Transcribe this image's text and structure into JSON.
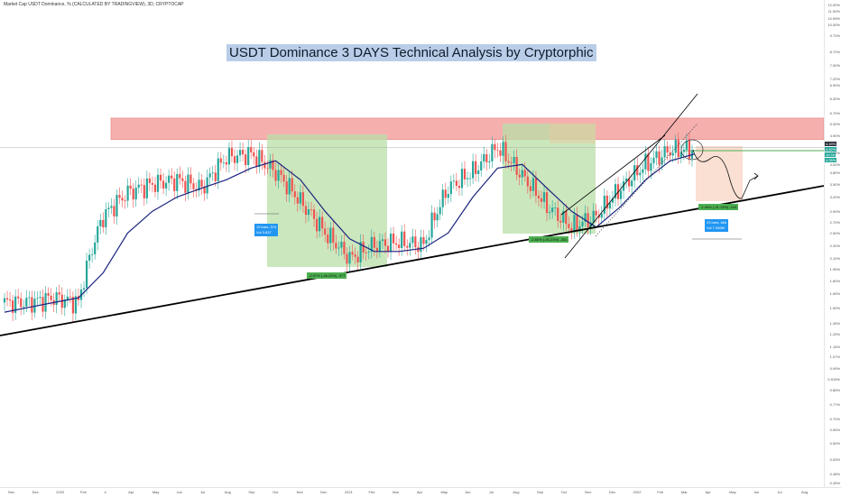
{
  "header": {
    "symbol_line": "Market Cap USDT Dominance, % (CALCULATED BY TRADINGVIEW), 3D, CRYPTOCAP"
  },
  "title": "USDT Dominance 3 DAYS Technical Analysis by Cryptorphic",
  "price_axis": {
    "ticks": [
      "12.00%",
      "11.50%",
      "10.95%",
      "10.50%",
      "9.70%",
      "8.70%",
      "7.90%",
      "7.20%",
      "6.90%",
      "6.30%",
      "5.70%",
      "5.30%",
      "4.90%",
      "4.35%",
      "4.00%",
      "3.80%",
      "3.50%",
      "3.20%",
      "2.90%",
      "2.70%",
      "2.50%",
      "2.30%",
      "2.10%",
      "1.95%",
      "1.80%",
      "1.65%",
      "1.50%",
      "1.35%",
      "1.25%",
      "1.15%",
      "1.07%",
      "0.99%",
      "0.915%",
      "0.85%",
      "0.77%",
      "0.70%",
      "0.65%",
      "0.59%",
      "0.53%",
      "0.48%",
      "0.45%"
    ],
    "current_tags": [
      {
        "text": "4.49%",
        "color": "#2a2e39"
      },
      {
        "text": "4.42%",
        "color": "#26a69a"
      },
      {
        "text": "1d 4h",
        "color": "#26a69a"
      },
      {
        "text": "4.35%",
        "color": "#26a69a"
      }
    ]
  },
  "time_axis": {
    "ticks": [
      "Nov",
      "Dec",
      "2020",
      "Feb",
      "4",
      "Apr",
      "May",
      "Jun",
      "Jul",
      "Aug",
      "Sep",
      "Oct",
      "Nov",
      "Dec",
      "2021",
      "Feb",
      "Mar",
      "Apr",
      "May",
      "Jun",
      "Jul",
      "Aug",
      "Sep",
      "Oct",
      "Nov",
      "Dec",
      "2022",
      "Feb",
      "Mar",
      "Apr",
      "May",
      "Jun",
      "Jul",
      "Aug"
    ]
  },
  "annotations": {
    "measure_labels": [
      {
        "text": "-2.97% (-46.29%) -377",
        "style": "green"
      },
      {
        "text": "-2.80% (-53.23%) -281",
        "style": "green"
      },
      {
        "text": "-1.49% (-31.13%) -144",
        "style": "green"
      }
    ],
    "date_range_labels": [
      {
        "line1": "19 bars, 57d",
        "line2": "Vol 3.837"
      },
      {
        "line1": "23 bars, 66d",
        "line2": "Vol 7.985M"
      }
    ]
  },
  "colors": {
    "up_candle": "#26a69a",
    "down_candle": "#ef5350",
    "moving_average": "#1a237e",
    "trendline": "#000000",
    "resistance_zone": "#f4a3a0",
    "decline_zone": "#b9dfa8",
    "projection_zone": "#f9d7c8",
    "title_bg": "#b9cde8"
  },
  "chart_data": {
    "type": "candlestick",
    "title": "USDT Dominance 3 DAYS Technical Analysis by Cryptorphic",
    "x_unit": "month",
    "x": [
      "2019-11",
      "2019-12",
      "2020-01",
      "2020-02",
      "2020-03",
      "2020-04",
      "2020-05",
      "2020-06",
      "2020-07",
      "2020-08",
      "2020-09",
      "2020-10",
      "2020-11",
      "2020-12",
      "2021-01",
      "2021-02",
      "2021-03",
      "2021-04",
      "2021-05",
      "2021-06",
      "2021-07",
      "2021-08",
      "2021-09",
      "2021-10",
      "2021-11",
      "2021-12",
      "2022-01",
      "2022-02",
      "2022-03"
    ],
    "series": [
      {
        "name": "USDT Dominance close",
        "values": [
          1.55,
          1.55,
          1.6,
          1.55,
          2.8,
          3.3,
          3.5,
          3.6,
          3.4,
          4.2,
          4.3,
          3.8,
          3.1,
          2.5,
          2.1,
          2.3,
          2.35,
          2.3,
          3.4,
          3.8,
          4.5,
          3.7,
          3.0,
          2.6,
          2.8,
          3.4,
          4.0,
          4.4,
          4.45
        ]
      },
      {
        "name": "Moving average",
        "values": [
          1.45,
          1.5,
          1.55,
          1.6,
          1.9,
          2.5,
          2.9,
          3.2,
          3.4,
          3.6,
          3.9,
          4.1,
          3.6,
          2.9,
          2.4,
          2.2,
          2.2,
          2.25,
          2.5,
          3.2,
          3.9,
          4.0,
          3.4,
          2.9,
          2.6,
          3.0,
          3.6,
          4.1,
          4.3
        ]
      }
    ],
    "yscale": "log",
    "ylim": [
      0.45,
      12.0
    ],
    "resistance_zone": [
      4.75,
      5.5
    ],
    "current_value": 4.49,
    "grid": false
  }
}
